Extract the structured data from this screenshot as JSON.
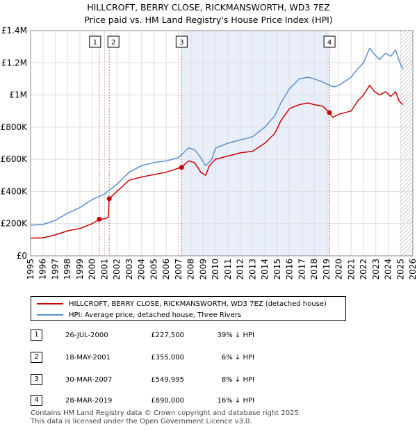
{
  "title": "HILLCROFT, BERRY CLOSE, RICKMANSWORTH, WD3 7EZ",
  "subtitle": "Price paid vs. HM Land Registry's House Price Index (HPI)",
  "colors": {
    "property": "#cc0000",
    "hpi": "#5b8fd0",
    "shade": "#e8eefa",
    "grid": "#dddddd",
    "marker_line": "#e06666",
    "hatch": "#999999"
  },
  "legend": {
    "property_label": "HILLCROFT, BERRY CLOSE, RICKMANSWORTH, WD3 7EZ (detached house)",
    "hpi_label": "HPI: Average price, detached house, Three Rivers"
  },
  "sales": [
    {
      "num": "1",
      "date": "26-JUL-2000",
      "price": "£227,500",
      "hpi_diff": "39% ↓ HPI"
    },
    {
      "num": "2",
      "date": "18-MAY-2001",
      "price": "£355,000",
      "hpi_diff": "6% ↓ HPI"
    },
    {
      "num": "3",
      "date": "30-MAR-2007",
      "price": "£549,995",
      "hpi_diff": "8% ↓ HPI"
    },
    {
      "num": "4",
      "date": "28-MAR-2019",
      "price": "£890,000",
      "hpi_diff": "16% ↓ HPI"
    }
  ],
  "footer": {
    "line1": "Contains HM Land Registry data © Crown copyright and database right 2025.",
    "line2": "This data is licensed under the Open Government Licence v3.0."
  },
  "chart_data": {
    "type": "line",
    "xlim": [
      1995,
      2026
    ],
    "ylim": [
      0,
      1400000
    ],
    "yticks": [
      0,
      200000,
      400000,
      600000,
      800000,
      1000000,
      1200000,
      1400000
    ],
    "ytick_labels": [
      "£0",
      "£200K",
      "£400K",
      "£600K",
      "£800K",
      "£1M",
      "£1.2M",
      "£1.4M"
    ],
    "xticks": [
      1995,
      1996,
      1997,
      1998,
      1999,
      2000,
      2001,
      2002,
      2003,
      2004,
      2005,
      2006,
      2007,
      2008,
      2009,
      2010,
      2011,
      2012,
      2013,
      2014,
      2015,
      2016,
      2017,
      2018,
      2019,
      2020,
      2021,
      2022,
      2023,
      2024,
      2025,
      2026
    ],
    "xtick_labels": [
      "1995",
      "1996",
      "1997",
      "1998",
      "1999",
      "2000",
      "2001",
      "2002",
      "2003",
      "2004",
      "2005",
      "2006",
      "2007",
      "2008",
      "2009",
      "2010",
      "2011",
      "2012",
      "2013",
      "2014",
      "2015",
      "2016",
      "2017",
      "2018",
      "2019",
      "2020",
      "2021",
      "2022",
      "2023",
      "2024",
      "2025",
      "2026"
    ],
    "shaded_span": [
      2007.25,
      2019.24
    ],
    "hatch_from": 2025.0,
    "sale_markers": [
      {
        "label": "1",
        "x": 2000.57,
        "y": 227500
      },
      {
        "label": "2",
        "x": 2001.38,
        "y": 355000
      },
      {
        "label": "3",
        "x": 2007.25,
        "y": 549995
      },
      {
        "label": "4",
        "x": 2019.24,
        "y": 890000
      }
    ],
    "series": [
      {
        "name": "HILLCROFT, BERRY CLOSE, RICKMANSWORTH, WD3 7EZ (detached house)",
        "x": [
          1995,
          1996,
          1997,
          1998,
          1999,
          2000,
          2000.57,
          2001.0,
          2001.3,
          2001.38,
          2002,
          2003,
          2004,
          2005,
          2006,
          2007,
          2007.25,
          2007.8,
          2008.3,
          2008.8,
          2009.2,
          2009.5,
          2010,
          2011,
          2012,
          2013,
          2014,
          2014.8,
          2015.3,
          2016,
          2016.8,
          2017.5,
          2018,
          2018.7,
          2019.24,
          2019.5,
          2020,
          2021,
          2021.5,
          2022,
          2022.5,
          2022.9,
          2023.3,
          2023.8,
          2024.2,
          2024.6,
          2024.9,
          2025.2
        ],
        "y": [
          110000,
          112000,
          130000,
          155000,
          170000,
          200000,
          227500,
          230000,
          240000,
          355000,
          400000,
          470000,
          490000,
          505000,
          520000,
          545000,
          549995,
          590000,
          580000,
          520000,
          500000,
          560000,
          600000,
          620000,
          640000,
          650000,
          700000,
          760000,
          840000,
          915000,
          940000,
          950000,
          940000,
          930000,
          890000,
          860000,
          880000,
          900000,
          960000,
          1000000,
          1060000,
          1020000,
          1000000,
          1020000,
          990000,
          1020000,
          960000,
          940000
        ]
      },
      {
        "name": "HPI: Average price, detached house, Three Rivers",
        "x": [
          1995,
          1996,
          1997,
          1998,
          1999,
          2000,
          2001,
          2002,
          2003,
          2004,
          2005,
          2006,
          2007,
          2007.8,
          2008.3,
          2008.8,
          2009.2,
          2009.7,
          2010,
          2011,
          2012,
          2013,
          2014,
          2014.8,
          2015.3,
          2016,
          2016.8,
          2017.5,
          2018,
          2018.7,
          2019.24,
          2019.6,
          2020,
          2021,
          2021.5,
          2022,
          2022.5,
          2022.9,
          2023.3,
          2023.8,
          2024.2,
          2024.6,
          2024.9,
          2025.2
        ],
        "y": [
          190000,
          195000,
          220000,
          265000,
          300000,
          350000,
          385000,
          445000,
          520000,
          560000,
          580000,
          590000,
          610000,
          670000,
          660000,
          610000,
          560000,
          600000,
          670000,
          700000,
          720000,
          740000,
          800000,
          870000,
          950000,
          1040000,
          1100000,
          1110000,
          1100000,
          1080000,
          1060000,
          1050000,
          1060000,
          1110000,
          1160000,
          1200000,
          1290000,
          1250000,
          1220000,
          1260000,
          1240000,
          1280000,
          1210000,
          1160000
        ]
      }
    ]
  }
}
